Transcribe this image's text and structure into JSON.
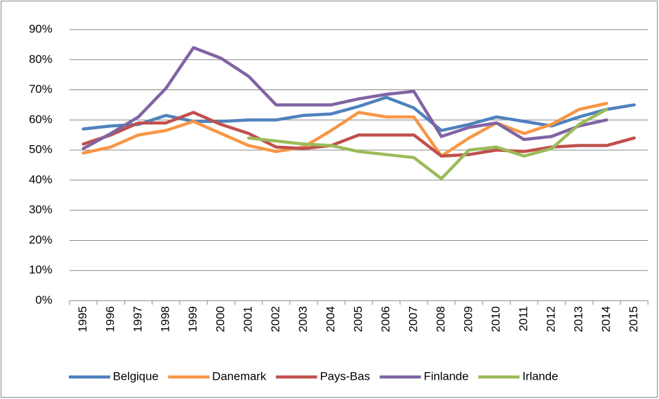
{
  "chart_data": {
    "type": "line",
    "categories": [
      "1995",
      "1996",
      "1997",
      "1998",
      "1999",
      "2000",
      "2001",
      "2002",
      "2003",
      "2004",
      "2005",
      "2006",
      "2007",
      "2008",
      "2009",
      "2010",
      "2011",
      "2012",
      "2013",
      "2014",
      "2015"
    ],
    "series": [
      {
        "name": "Belgique",
        "color": "#4f81bd",
        "values": [
          57,
          58,
          58.5,
          61.5,
          59.5,
          59.5,
          60,
          60,
          61.5,
          62,
          64.5,
          67.5,
          64,
          56.5,
          58.5,
          61,
          59.5,
          58,
          61,
          63.5,
          65
        ]
      },
      {
        "name": "Danemark",
        "color": "#f79646",
        "values": [
          49,
          51,
          55,
          56.5,
          59.5,
          55.5,
          51.5,
          49.5,
          51,
          56.5,
          62.5,
          61,
          61,
          48,
          54,
          59,
          55.5,
          58.5,
          63.5,
          65.5,
          null
        ]
      },
      {
        "name": "Pays-Bas",
        "color": "#c0504d",
        "values": [
          52,
          55,
          59,
          59,
          62.5,
          58.5,
          55.5,
          51,
          50.5,
          51.5,
          55,
          55,
          55,
          48,
          48.5,
          50,
          49.5,
          51,
          51.5,
          51.5,
          54
        ]
      },
      {
        "name": "Finlande",
        "color": "#8064a2",
        "values": [
          50.5,
          55.5,
          61,
          70.5,
          84,
          80.5,
          74.5,
          65,
          65,
          65,
          67,
          68.5,
          69.5,
          54.5,
          57.5,
          59,
          53.5,
          54.5,
          58,
          60,
          null
        ]
      },
      {
        "name": "Irlande",
        "color": "#9bbb59",
        "values": [
          null,
          null,
          null,
          null,
          null,
          null,
          54,
          53,
          52,
          51.5,
          49.5,
          48.5,
          47.5,
          40.5,
          50,
          51,
          48,
          50.5,
          58.5,
          63.5,
          null
        ]
      }
    ],
    "ylim": [
      0,
      90
    ],
    "yticks": [
      {
        "value": 0,
        "label": "0%"
      },
      {
        "value": 10,
        "label": "10%"
      },
      {
        "value": 20,
        "label": "20%"
      },
      {
        "value": 30,
        "label": "30%"
      },
      {
        "value": 40,
        "label": "40%"
      },
      {
        "value": 50,
        "label": "50%"
      },
      {
        "value": 60,
        "label": "60%"
      },
      {
        "value": 70,
        "label": "70%"
      },
      {
        "value": 80,
        "label": "80%"
      },
      {
        "value": 90,
        "label": "90%"
      }
    ],
    "grid": true,
    "legend": "bottom"
  }
}
